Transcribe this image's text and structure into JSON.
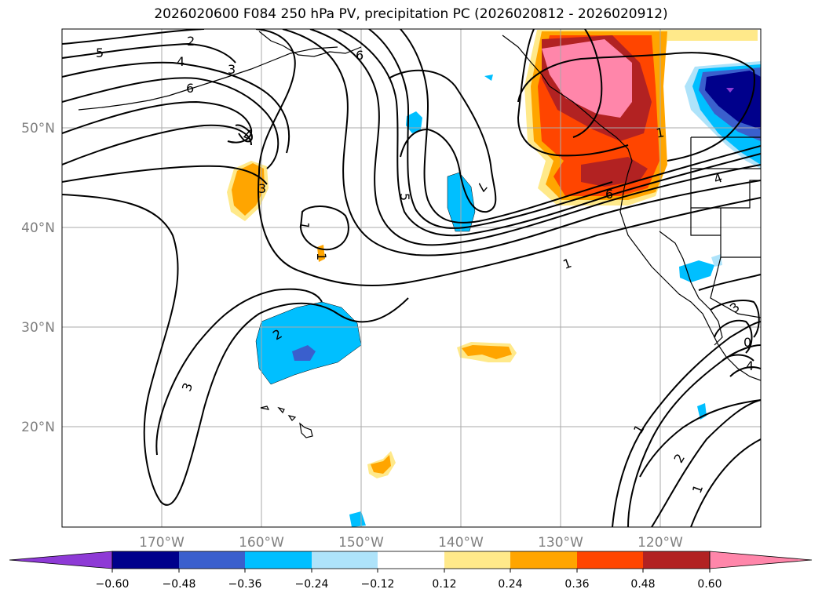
{
  "title": "2026020600 F084 250 hPa PV, precipitation PC (2026020812 - 2026020912)",
  "map": {
    "lon_labels": [
      "170°W",
      "160°W",
      "150°W",
      "140°W",
      "130°W",
      "120°W"
    ],
    "lat_labels": [
      "50°N",
      "40°N",
      "30°N",
      "20°N"
    ],
    "contour_labels": [
      {
        "text": "5"
      },
      {
        "text": "2"
      },
      {
        "text": "4"
      },
      {
        "text": "3"
      },
      {
        "text": "6"
      },
      {
        "text": "6"
      },
      {
        "text": "7"
      },
      {
        "text": "3"
      },
      {
        "text": "1"
      },
      {
        "text": "1"
      },
      {
        "text": "5"
      },
      {
        "text": "7"
      },
      {
        "text": "1"
      },
      {
        "text": "2"
      },
      {
        "text": "3"
      },
      {
        "text": "6"
      },
      {
        "text": "4"
      },
      {
        "text": "1"
      },
      {
        "text": "1"
      },
      {
        "text": "2"
      },
      {
        "text": "1"
      },
      {
        "text": "3"
      },
      {
        "text": "0"
      },
      {
        "text": "4"
      }
    ]
  },
  "colorbar": {
    "tick_labels": [
      "−0.60",
      "−0.48",
      "−0.36",
      "−0.24",
      "−0.12",
      "0.12",
      "0.24",
      "0.36",
      "0.48",
      "0.60"
    ],
    "colors": [
      "#8e3ad6",
      "#00008b",
      "#3a5fcd",
      "#00bfff",
      "#aee3fa",
      "#ffffff",
      "#ffe98a",
      "#ffa500",
      "#ff4500",
      "#b22222",
      "#ff86aa"
    ]
  },
  "colors": {
    "contour": "#000000",
    "grid": "#aaaaaa",
    "axis_label": "#7f7f7f"
  }
}
